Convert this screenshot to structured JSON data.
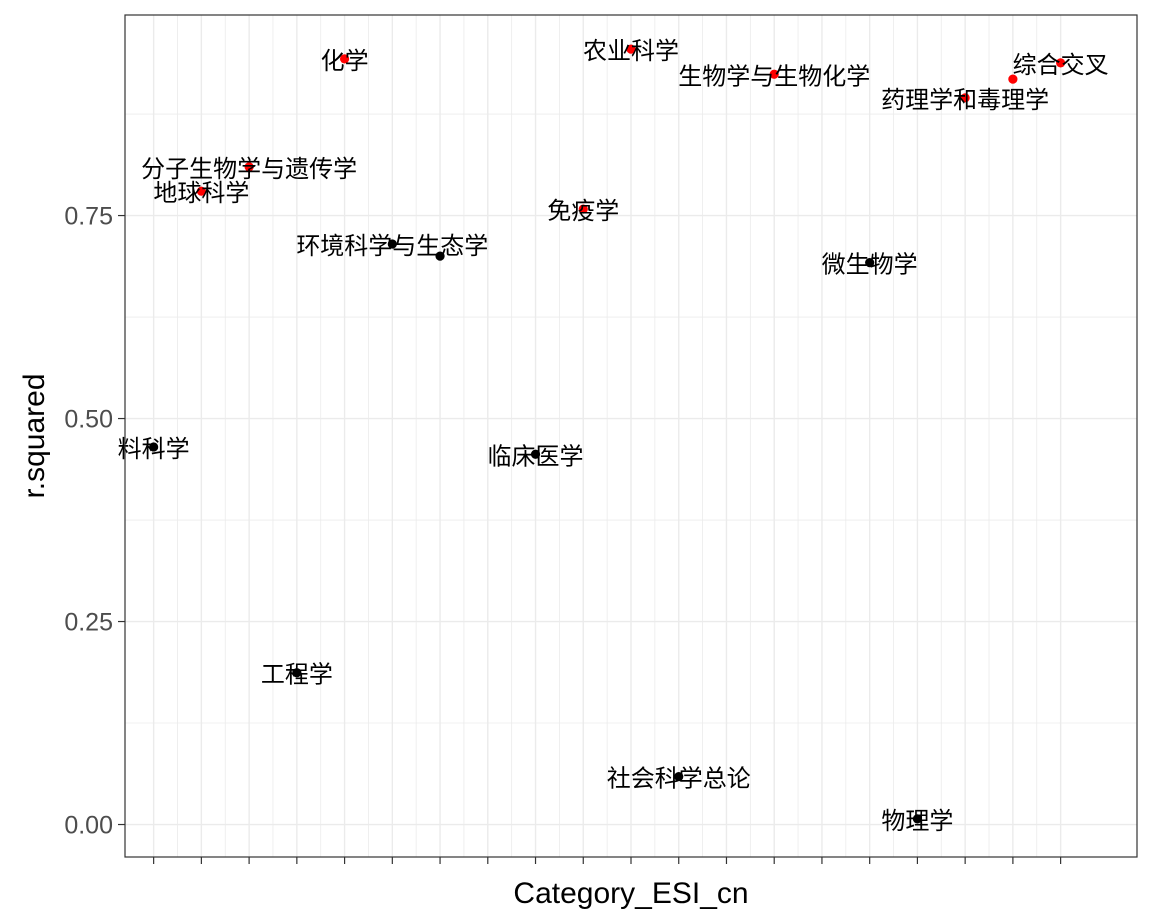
{
  "chart_data": {
    "type": "scatter",
    "title": "",
    "xlabel": "Category_ESI_cn",
    "ylabel": "r.squared",
    "ylim": [
      -0.04,
      0.997
    ],
    "y_ticks": [
      "0.00",
      "0.25",
      "0.50",
      "0.75"
    ],
    "y_tick_values": [
      0.0,
      0.25,
      0.5,
      0.75
    ],
    "x_categories_count": 20,
    "grid": true,
    "legend": "none",
    "colors": {
      "highlight": "#ff0000",
      "normal": "#000000",
      "grid": "#ebebeb",
      "panel_border": "#333333"
    },
    "points": [
      {
        "x": 1,
        "y": 0.465,
        "label": "料科学",
        "color": "normal"
      },
      {
        "x": 2,
        "y": 0.78,
        "label": "地球科学",
        "color": "highlight"
      },
      {
        "x": 3,
        "y": 0.81,
        "label": "分子生物学与遗传学",
        "color": "highlight"
      },
      {
        "x": 4,
        "y": 0.187,
        "label": "工程学",
        "color": "normal"
      },
      {
        "x": 5,
        "y": 0.943,
        "label": "化学",
        "color": "highlight"
      },
      {
        "x": 6,
        "y": 0.715,
        "label": "环境科学与生态学",
        "color": "normal"
      },
      {
        "x": 7,
        "y": 0.7,
        "label": "",
        "color": "normal"
      },
      {
        "x": 9,
        "y": 0.456,
        "label": "临床医学",
        "color": "normal"
      },
      {
        "x": 10,
        "y": 0.758,
        "label": "免疫学",
        "color": "highlight"
      },
      {
        "x": 11,
        "y": 0.955,
        "label": "农业科学",
        "color": "highlight"
      },
      {
        "x": 12,
        "y": 0.059,
        "label": "社会科学总论",
        "color": "normal"
      },
      {
        "x": 14,
        "y": 0.924,
        "label": "生物学与生物化学",
        "color": "highlight"
      },
      {
        "x": 16,
        "y": 0.692,
        "label": "微生物学",
        "color": "normal"
      },
      {
        "x": 17,
        "y": 0.007,
        "label": "物理学",
        "color": "normal"
      },
      {
        "x": 18,
        "y": 0.895,
        "label": "药理学和毒理学",
        "color": "highlight"
      },
      {
        "x": 19,
        "y": 0.918,
        "label": "",
        "color": "highlight"
      },
      {
        "x": 20,
        "y": 0.938,
        "label": "综合交叉",
        "color": "highlight"
      }
    ]
  }
}
